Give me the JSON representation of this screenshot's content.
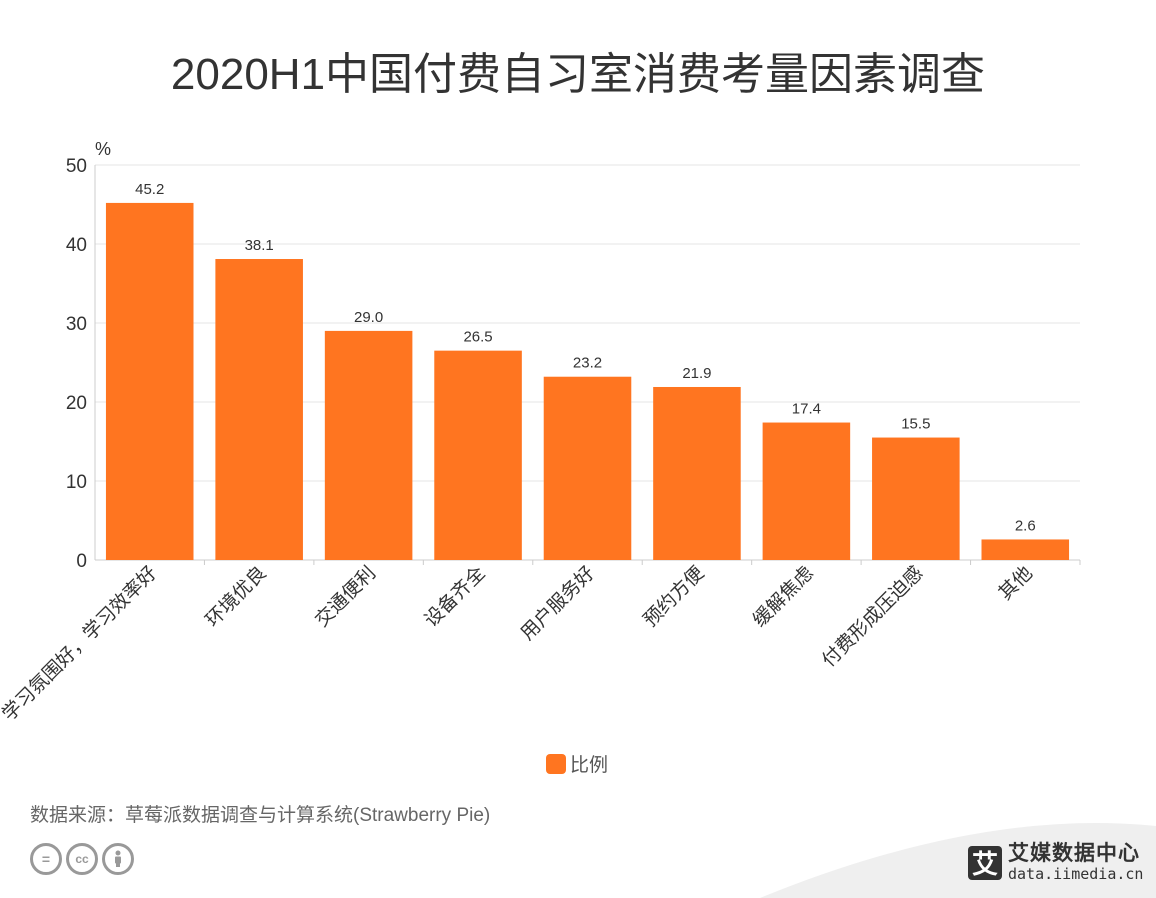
{
  "title": "2020H1中国付费自习室消费考量因素调查",
  "source": "数据来源：草莓派数据调查与计算系统(Strawberry Pie)",
  "logo": {
    "cn": "艾媒数据中心",
    "url": "data.iimedia.cn",
    "mark": "艾"
  },
  "cc_icons": [
    "equals-icon",
    "cc-icon",
    "person-icon"
  ],
  "colors": {
    "bar": "#FF7520",
    "grid": "#e6e6e6",
    "axis": "#cccccc",
    "text": "#333333"
  },
  "chart_data": {
    "type": "bar",
    "title": "2020H1中国付费自习室消费考量因素调查",
    "ylabel": "%",
    "xlabel": "",
    "ylim": [
      0,
      50
    ],
    "yticks": [
      0,
      10,
      20,
      30,
      40,
      50
    ],
    "grid": true,
    "legend": "bottom",
    "categories": [
      "学习氛围好，学习效率好",
      "环境优良",
      "交通便利",
      "设备齐全",
      "用户服务好",
      "预约方便",
      "缓解焦虑",
      "付费形成压迫感",
      "其他"
    ],
    "series": [
      {
        "name": "比例",
        "values": [
          45.2,
          38.1,
          29.0,
          26.5,
          23.2,
          21.9,
          17.4,
          15.5,
          2.6
        ]
      }
    ]
  }
}
